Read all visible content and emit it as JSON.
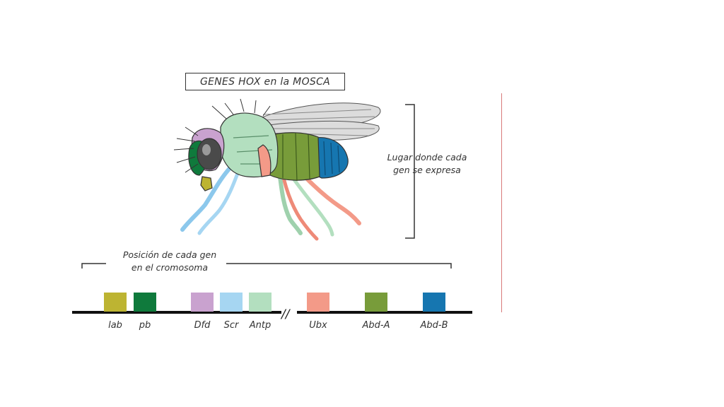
{
  "title": "GENES HOX en la MOSCA",
  "expression_label": {
    "line1": "Lugar donde cada",
    "line2": "gen se expresa"
  },
  "position_label": {
    "line1": "Posición de cada gen",
    "line2": "en el cromosoma"
  },
  "chromosome_break": "//",
  "genes": [
    {
      "name": "lab",
      "color": "#bdb432"
    },
    {
      "name": "pb",
      "color": "#0f7a3c"
    },
    {
      "name": "Dfd",
      "color": "#c9a2cf"
    },
    {
      "name": "Scr",
      "color": "#a6d6f2"
    },
    {
      "name": "Antp",
      "color": "#b3dfbf"
    },
    {
      "name": "Ubx",
      "color": "#f39a88"
    },
    {
      "name": "Abd-A",
      "color": "#789c3a"
    },
    {
      "name": "Abd-B",
      "color": "#1676b0"
    }
  ]
}
